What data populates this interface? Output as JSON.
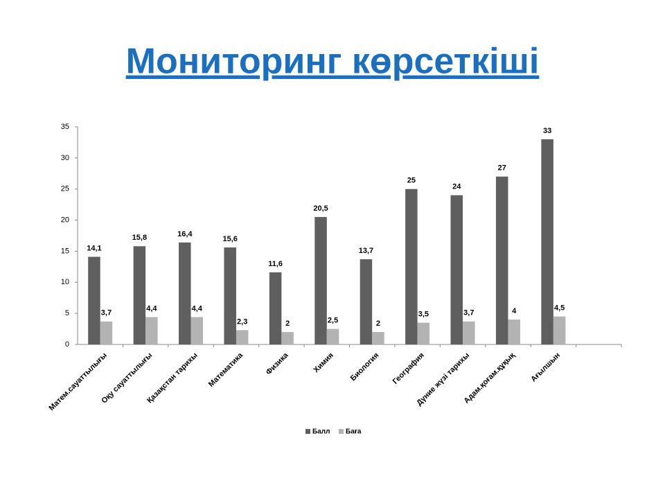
{
  "chart_data": {
    "type": "bar",
    "title": "Мониторинг көрсеткіші",
    "categories": [
      "Матем.сауаттылығы",
      "Оқу сауаттылығы",
      "Қазақстан  тарихы",
      "Математика",
      "Физика",
      "Химия",
      "Биология",
      "География",
      "Дүние жүзі тарихы",
      "Адам.қоғам.құқық",
      "Ағылшын",
      null
    ],
    "series": [
      {
        "name": "Балл",
        "color": "#5f5f5f",
        "values": [
          14.1,
          15.8,
          16.4,
          15.6,
          11.6,
          20.5,
          13.7,
          25,
          24,
          27,
          33,
          null
        ],
        "value_labels": [
          "14,1",
          "15,8",
          "16,4",
          "15,6",
          "11,6",
          "20,5",
          "13,7",
          "25",
          "24",
          "27",
          "33",
          null
        ]
      },
      {
        "name": "Баға",
        "color": "#b3b3b3",
        "values": [
          3.7,
          4.4,
          4.4,
          2.3,
          2,
          2.5,
          2,
          3.5,
          3.7,
          4,
          4.5,
          null
        ],
        "value_labels": [
          "3,7",
          "4,4",
          "4,4",
          "2,3",
          "2",
          "2,5",
          "2",
          "3,5",
          "3,7",
          "4",
          "4,5",
          null
        ]
      }
    ],
    "ylim": [
      0,
      35
    ],
    "yticks": [
      0,
      5,
      10,
      15,
      20,
      25,
      30,
      35
    ],
    "grid": false,
    "legend": "bottom"
  }
}
